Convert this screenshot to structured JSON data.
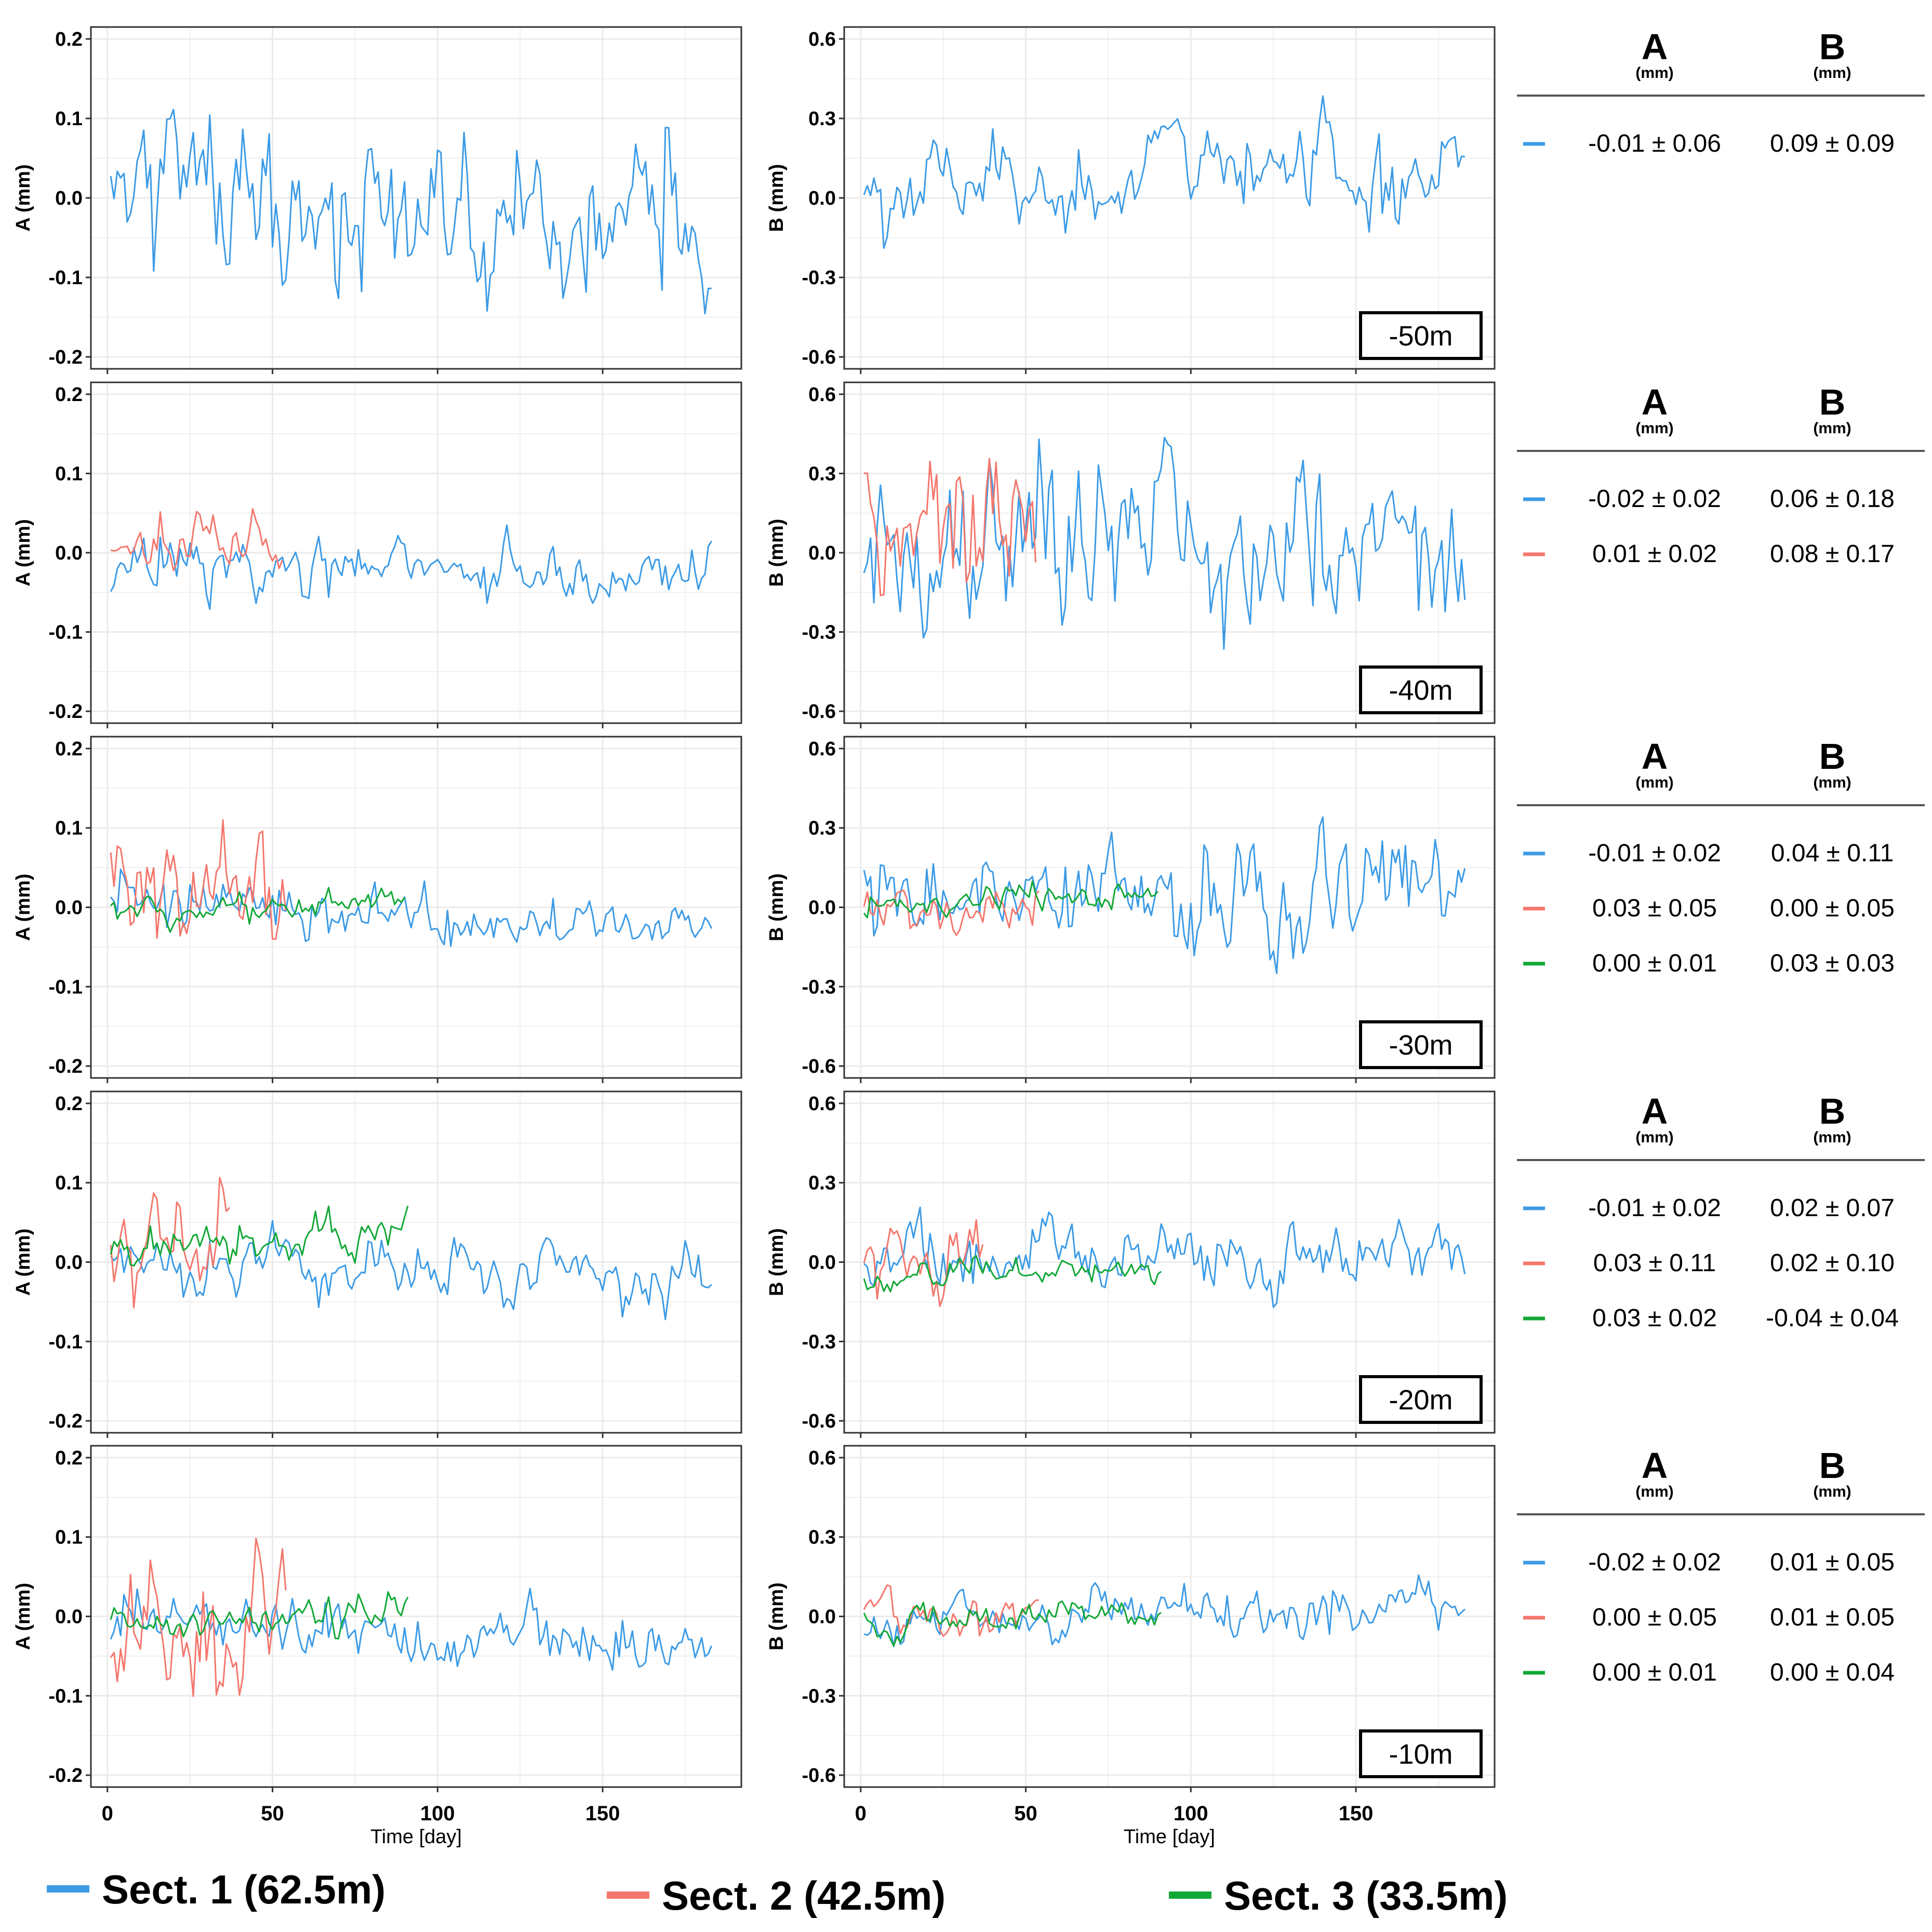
{
  "colors": {
    "sect1": "#3C9BE6",
    "sect2": "#F4776D",
    "sect3": "#12A837",
    "grid": "#EBEBEB",
    "frame": "#333333"
  },
  "legend": [
    {
      "key": "sect1",
      "label": "Sect. 1 (62.5m)"
    },
    {
      "key": "sect2",
      "label": "Sect. 2 (42.5m)"
    },
    {
      "key": "sect3",
      "label": "Sect. 3 (33.5m)"
    }
  ],
  "stats_header": {
    "a": "A",
    "b": "B",
    "unit": "(mm)"
  },
  "chart_data": {
    "type": "line",
    "xlabel": "Time [day]",
    "x_ticks": [
      0,
      50,
      100,
      150
    ],
    "xlim": [
      -5,
      192
    ],
    "panel_a": {
      "ylabel": "A (mm)",
      "ylim": [
        -0.215,
        0.215
      ],
      "ticks": [
        -0.2,
        -0.1,
        0.0,
        0.1,
        0.2
      ],
      "tick_labels": [
        "-0.2",
        "-0.1",
        "0.0",
        "0.1",
        "0.2"
      ]
    },
    "panel_b": {
      "ylabel": "B (mm)",
      "ylim": [
        -0.645,
        0.645
      ],
      "ticks": [
        -0.6,
        -0.3,
        0.0,
        0.3,
        0.6
      ],
      "tick_labels": [
        "-0.6",
        "-0.3",
        "0.0",
        "0.3",
        "0.6"
      ]
    },
    "rows": [
      {
        "depth": "-50m",
        "series": [
          {
            "key": "sect1",
            "days": 183,
            "a": {
              "mean": -0.01,
              "sd": 0.06,
              "scale": 0.06,
              "trend": -0.06
            },
            "b": {
              "mean": 0.09,
              "sd": 0.09,
              "scale": 0.09,
              "trend": 0.05
            },
            "stat_a": "-0.01 ± 0.06",
            "stat_b": "0.09 ± 0.09"
          }
        ]
      },
      {
        "depth": "-40m",
        "series": [
          {
            "key": "sect1",
            "days": 183,
            "a": {
              "mean": -0.02,
              "sd": 0.02,
              "scale": 0.02,
              "trend": -0.02
            },
            "b": {
              "mean": 0.06,
              "sd": 0.18,
              "scale": 0.18,
              "trend": 0.1
            },
            "stat_a": "-0.02 ± 0.02",
            "stat_b": "0.06 ± 0.18"
          },
          {
            "key": "sect2",
            "days": 53,
            "a": {
              "mean": 0.01,
              "sd": 0.02,
              "scale": 0.02,
              "trend": 0.0
            },
            "b": {
              "mean": 0.08,
              "sd": 0.17,
              "scale": 0.17,
              "trend": 0.05
            },
            "stat_a": "0.01 ± 0.02",
            "stat_b": "0.08 ± 0.17"
          }
        ]
      },
      {
        "depth": "-30m",
        "series": [
          {
            "key": "sect1",
            "days": 183,
            "a": {
              "mean": -0.01,
              "sd": 0.02,
              "scale": 0.02,
              "trend": -0.03
            },
            "b": {
              "mean": 0.04,
              "sd": 0.11,
              "scale": 0.11,
              "trend": 0.02
            },
            "stat_a": "-0.01 ± 0.02",
            "stat_b": "0.04 ± 0.11"
          },
          {
            "key": "sect2",
            "days": 54,
            "a": {
              "mean": 0.03,
              "sd": 0.05,
              "scale": 0.05,
              "trend": 0.02
            },
            "b": {
              "mean": 0.0,
              "sd": 0.05,
              "scale": 0.05,
              "trend": 0.02
            },
            "stat_a": "0.03 ± 0.05",
            "stat_b": "0.00 ± 0.05"
          },
          {
            "key": "sect3",
            "days": 90,
            "a": {
              "mean": 0.0,
              "sd": 0.01,
              "scale": 0.01,
              "trend": 0.0
            },
            "b": {
              "mean": 0.03,
              "sd": 0.03,
              "scale": 0.03,
              "trend": 0.06
            },
            "stat_a": "0.00 ± 0.01",
            "stat_b": "0.03 ± 0.03"
          }
        ]
      },
      {
        "depth": "-20m",
        "series": [
          {
            "key": "sect1",
            "days": 183,
            "a": {
              "mean": -0.01,
              "sd": 0.02,
              "scale": 0.02,
              "trend": -0.02
            },
            "b": {
              "mean": 0.02,
              "sd": 0.07,
              "scale": 0.07,
              "trend": 0.03
            },
            "stat_a": "-0.01 ± 0.02",
            "stat_b": "0.02 ± 0.07"
          },
          {
            "key": "sect2",
            "days": 37,
            "a": {
              "mean": 0.03,
              "sd": 0.11,
              "scale": 0.05,
              "trend": 0.0
            },
            "b": {
              "mean": 0.02,
              "sd": 0.1,
              "scale": 0.08,
              "trend": -0.02
            },
            "stat_a": "0.03 ± 0.11",
            "stat_b": "0.02 ± 0.10"
          },
          {
            "key": "sect3",
            "days": 91,
            "a": {
              "mean": 0.03,
              "sd": 0.02,
              "scale": 0.015,
              "trend": 0.03
            },
            "b": {
              "mean": -0.04,
              "sd": 0.04,
              "scale": 0.03,
              "trend": 0.04
            },
            "stat_a": "0.03 ± 0.02",
            "stat_b": "-0.04 ± 0.04"
          }
        ]
      },
      {
        "depth": "-10m",
        "series": [
          {
            "key": "sect1",
            "days": 183,
            "a": {
              "mean": -0.02,
              "sd": 0.02,
              "scale": 0.02,
              "trend": -0.03
            },
            "b": {
              "mean": 0.01,
              "sd": 0.05,
              "scale": 0.05,
              "trend": 0.04
            },
            "stat_a": "-0.02 ± 0.02",
            "stat_b": "0.01 ± 0.05"
          },
          {
            "key": "sect2",
            "days": 54,
            "a": {
              "mean": 0.0,
              "sd": 0.05,
              "scale": 0.05,
              "trend": 0.0
            },
            "b": {
              "mean": 0.01,
              "sd": 0.05,
              "scale": 0.04,
              "trend": 0.0
            },
            "stat_a": "0.00 ± 0.05",
            "stat_b": "0.01 ± 0.05"
          },
          {
            "key": "sect3",
            "days": 91,
            "a": {
              "mean": 0.0,
              "sd": 0.01,
              "scale": 0.012,
              "trend": 0.02
            },
            "b": {
              "mean": 0.0,
              "sd": 0.04,
              "scale": 0.03,
              "trend": 0.05
            },
            "stat_a": "0.00 ± 0.01",
            "stat_b": "0.00 ± 0.04"
          }
        ]
      }
    ]
  }
}
